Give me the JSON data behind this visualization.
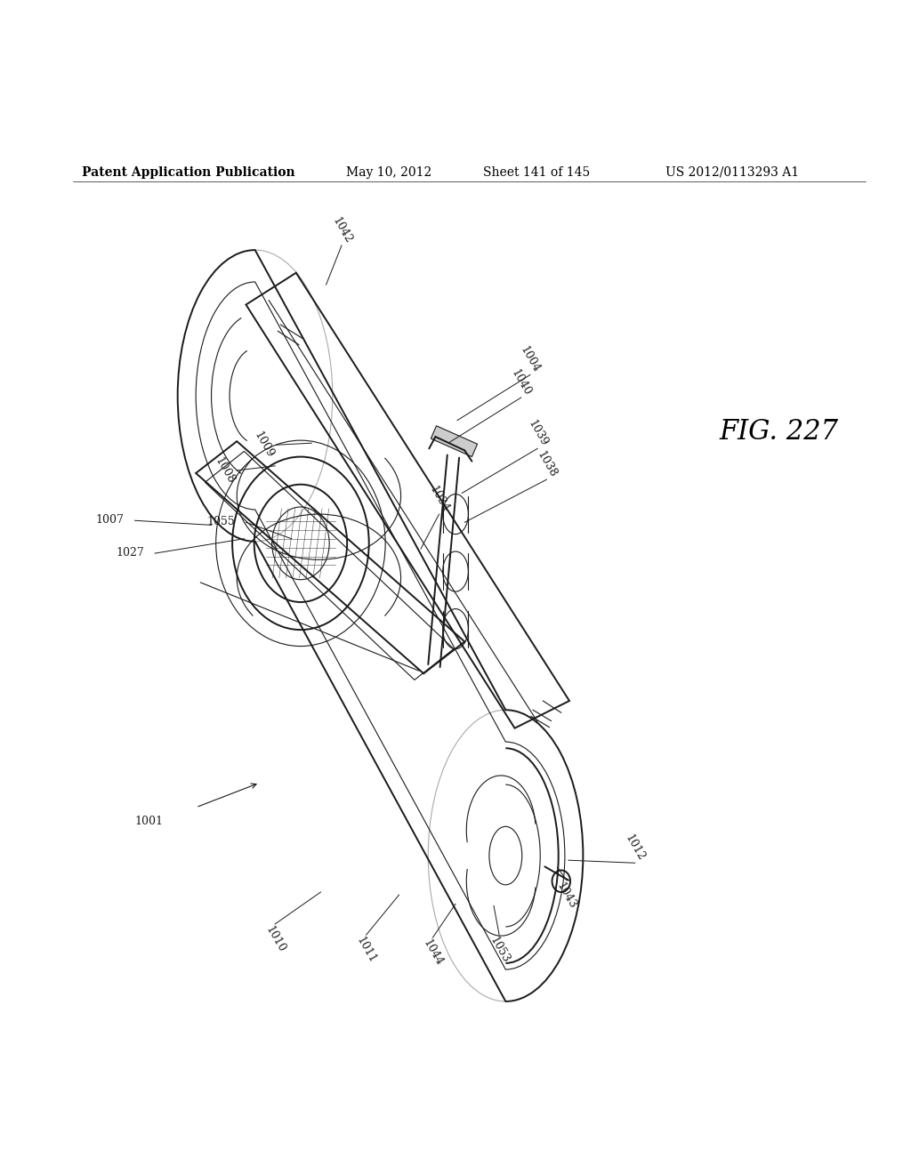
{
  "background_color": "#ffffff",
  "line_color": "#1a1a1a",
  "header_text": "Patent Application Publication",
  "header_date": "May 10, 2012",
  "header_sheet": "Sheet 141 of 145",
  "header_patent": "US 2012/0113293 A1",
  "figure_label": "FIG. 227",
  "header_fontsize": 10,
  "label_fontsize": 9,
  "fig_label_fontsize": 22
}
